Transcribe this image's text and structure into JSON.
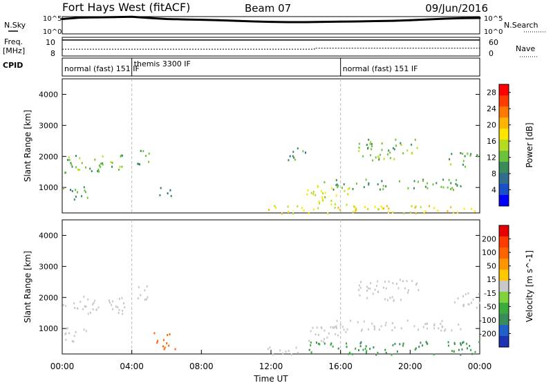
{
  "header": {
    "station": "Fort Hays West (fitACF)",
    "beam": "Beam 07",
    "date": "09/Jun/2016"
  },
  "left_labels": {
    "nsky": "N.Sky",
    "freq_line1": "Freq.",
    "freq_line2": "[MHz]",
    "cpid": "CPID"
  },
  "right_labels": {
    "nsearch": "N.Search",
    "nave": "Nave"
  },
  "chart_data": [
    {
      "type": "line",
      "panel": "noise",
      "left_ticks": [
        "10^5",
        "10^0"
      ],
      "right_ticks": [
        "10^5",
        "10^0"
      ],
      "series": [
        {
          "name": "N.Sky",
          "color": "#000000",
          "x": [
            0,
            1,
            2,
            3,
            4,
            5,
            6,
            7,
            8,
            9,
            10,
            11,
            12,
            13,
            14,
            15,
            16,
            17,
            18,
            19,
            20,
            21,
            22,
            23,
            24
          ],
          "y": [
            20000,
            50000,
            60000,
            70000,
            90000,
            40000,
            20000,
            15000,
            12000,
            9000,
            6000,
            4000,
            3000,
            2500,
            2500,
            3000,
            3500,
            4000,
            5000,
            6000,
            9000,
            15000,
            25000,
            35000,
            40000
          ]
        }
      ]
    },
    {
      "type": "line",
      "panel": "frequency",
      "left_ticks": [
        "10",
        "8"
      ],
      "right_ticks": [
        "60",
        "0"
      ],
      "series": [
        {
          "name": "Freq.",
          "color": "#000000",
          "x": [
            0,
            24
          ],
          "y": [
            10.5,
            10.5
          ]
        },
        {
          "name": "Nave",
          "color": "#000000",
          "x": [
            0,
            14.5,
            14.5,
            24
          ],
          "y": [
            22,
            22,
            25,
            25
          ]
        }
      ]
    },
    {
      "type": "table",
      "panel": "cpid",
      "segments": [
        {
          "start": 0,
          "end": 4,
          "label": "normal (fast) 151 IF"
        },
        {
          "start": 4,
          "end": 16,
          "label": "themis 3300 IF"
        },
        {
          "start": 16,
          "end": 24,
          "label": "normal (fast) 151 IF"
        }
      ]
    },
    {
      "type": "heatmap",
      "panel": "power",
      "ylabel": "Slant Range [km]",
      "yticks": [
        "1000",
        "2000",
        "3000",
        "4000"
      ],
      "ylim": [
        180,
        4500
      ],
      "xlim": [
        0,
        24
      ],
      "colorbar": {
        "label": "Power [dB]",
        "ticks": [
          "4",
          "8",
          "12",
          "16",
          "20",
          "24",
          "28"
        ],
        "colors": [
          "#0000ff",
          "#1a4fc8",
          "#2f6f8c",
          "#3a8c5a",
          "#6ec13a",
          "#b6dc22",
          "#ffe600",
          "#ffb400",
          "#ff7800",
          "#ff3c00",
          "#ff0000"
        ]
      },
      "bands": [
        {
          "x0": 0.0,
          "x1": 3.6,
          "y0": 1500,
          "y1": 2100,
          "value": 12
        },
        {
          "x0": 0.0,
          "x1": 1.6,
          "y0": 600,
          "y1": 1050,
          "value": 10
        },
        {
          "x0": 4.3,
          "x1": 5.0,
          "y0": 1700,
          "y1": 2400,
          "value": 11
        },
        {
          "x0": 5.3,
          "x1": 6.3,
          "y0": 750,
          "y1": 1050,
          "value": 6
        },
        {
          "x0": 11.8,
          "x1": 24.0,
          "y0": 180,
          "y1": 450,
          "value": 18
        },
        {
          "x0": 14.0,
          "x1": 16.5,
          "y0": 450,
          "y1": 1100,
          "value": 16
        },
        {
          "x0": 12.6,
          "x1": 14.0,
          "y0": 1900,
          "y1": 2300,
          "value": 10
        },
        {
          "x0": 15.0,
          "x1": 23.0,
          "y0": 950,
          "y1": 1300,
          "value": 10
        },
        {
          "x0": 17.0,
          "x1": 20.5,
          "y0": 1900,
          "y1": 2600,
          "value": 12
        },
        {
          "x0": 22.2,
          "x1": 24.0,
          "y0": 1700,
          "y1": 2200,
          "value": 11
        }
      ]
    },
    {
      "type": "heatmap",
      "panel": "velocity",
      "ylabel": "Slant Range [km]",
      "yticks": [
        "1000",
        "2000",
        "3000",
        "4000"
      ],
      "ylim": [
        180,
        4500
      ],
      "xlim": [
        0,
        24
      ],
      "colorbar": {
        "label": "Velocity [m s^-1]",
        "ticks": [
          "200",
          "100",
          "50",
          "15",
          "-15",
          "-50",
          "-100",
          "-200"
        ],
        "colors": [
          "#1e32b4",
          "#2060c8",
          "#3a8c5a",
          "#3caa3c",
          "#7ed23c",
          "#c8c8c8",
          "#ffc800",
          "#ff9600",
          "#ff6400",
          "#ff3c00",
          "#e60000"
        ]
      },
      "bands": [
        {
          "x0": 0.0,
          "x1": 3.6,
          "y0": 1500,
          "y1": 2100,
          "value": 0
        },
        {
          "x0": 0.0,
          "x1": 1.6,
          "y0": 600,
          "y1": 1050,
          "value": 0
        },
        {
          "x0": 4.3,
          "x1": 5.0,
          "y0": 1700,
          "y1": 2400,
          "value": 0
        },
        {
          "x0": 5.2,
          "x1": 6.5,
          "y0": 350,
          "y1": 900,
          "value": -60
        },
        {
          "x0": 11.8,
          "x1": 14.0,
          "y0": 180,
          "y1": 450,
          "value": 0
        },
        {
          "x0": 14.0,
          "x1": 24.0,
          "y0": 180,
          "y1": 600,
          "value": 40
        },
        {
          "x0": 14.0,
          "x1": 16.5,
          "y0": 600,
          "y1": 1100,
          "value": 0
        },
        {
          "x0": 15.0,
          "x1": 23.0,
          "y0": 950,
          "y1": 1300,
          "value": 0
        },
        {
          "x0": 17.0,
          "x1": 20.5,
          "y0": 1900,
          "y1": 2600,
          "value": 0
        },
        {
          "x0": 22.2,
          "x1": 24.0,
          "y0": 1700,
          "y1": 2200,
          "value": 0
        }
      ]
    }
  ],
  "x_axis": {
    "ticks": [
      "00:00",
      "04:00",
      "08:00",
      "12:00",
      "16:00",
      "20:00",
      "00:00"
    ],
    "label": "Time UT"
  }
}
